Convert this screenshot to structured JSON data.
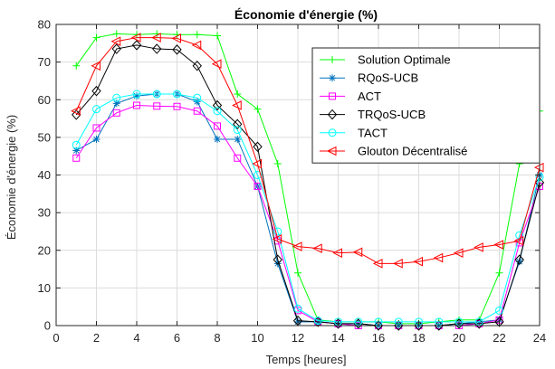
{
  "chart_data": {
    "type": "line",
    "title": "Économie d'énergie (%)",
    "xlabel": "Temps [heures]",
    "ylabel": "Économie d'énergie (%)",
    "xlim": [
      0,
      24
    ],
    "ylim": [
      0,
      80
    ],
    "xticks": [
      0,
      2,
      4,
      6,
      8,
      10,
      12,
      14,
      16,
      18,
      20,
      22,
      24
    ],
    "yticks": [
      0,
      10,
      20,
      30,
      40,
      50,
      60,
      70,
      80
    ],
    "grid": true,
    "legend_position": "top-right",
    "x": [
      1,
      2,
      3,
      4,
      5,
      6,
      7,
      8,
      9,
      10,
      11,
      12,
      13,
      14,
      15,
      16,
      17,
      18,
      19,
      20,
      21,
      22,
      23,
      24
    ],
    "series": [
      {
        "name": "Solution Optimale",
        "color": "#00ff00",
        "marker": "plus",
        "values": [
          69,
          76.5,
          77.5,
          77.3,
          77.5,
          77.3,
          77.3,
          77,
          61.5,
          57.5,
          43,
          14,
          1.5,
          1,
          1,
          1,
          0.5,
          0.5,
          1,
          1.5,
          1.5,
          14,
          43,
          57
        ]
      },
      {
        "name": "RQoS-UCB",
        "color": "#0072bd",
        "marker": "asterisk",
        "values": [
          46.5,
          49.5,
          59,
          61,
          61.5,
          61.5,
          59.5,
          49.5,
          49.5,
          37,
          16.5,
          1,
          1,
          0.5,
          0.5,
          0,
          0,
          0,
          0,
          0.5,
          1,
          1.5,
          17,
          40
        ]
      },
      {
        "name": "ACT",
        "color": "#ff00ff",
        "marker": "square",
        "values": [
          44.5,
          52.5,
          56.5,
          58.5,
          58.3,
          58.2,
          57,
          53,
          44.5,
          37,
          22.5,
          4,
          1,
          0.5,
          0,
          0,
          0,
          0,
          0,
          0,
          0.5,
          1.5,
          22,
          37
        ]
      },
      {
        "name": "TRQoS-UCB",
        "color": "#000000",
        "marker": "diamond",
        "values": [
          56,
          62.3,
          73.5,
          74.5,
          73.5,
          73.3,
          69,
          58.5,
          53.5,
          47.5,
          17.5,
          1.3,
          1,
          0.5,
          0.5,
          0,
          0,
          0,
          0,
          0.5,
          0.5,
          1,
          17.5,
          38
        ]
      },
      {
        "name": "TACT",
        "color": "#00ffff",
        "marker": "circle",
        "values": [
          48,
          57.5,
          60.5,
          61.5,
          61.5,
          61.5,
          60.5,
          57,
          52,
          40,
          25,
          4.5,
          1.3,
          1,
          1,
          1,
          1,
          1,
          1,
          1,
          1,
          4,
          24,
          39.5
        ]
      },
      {
        "name": "Glouton Décentralisé",
        "color": "#ff0000",
        "marker": "triangle-left",
        "values": [
          57,
          69,
          75.5,
          76.5,
          76.5,
          76.3,
          74.5,
          69.5,
          58.5,
          43,
          23,
          21,
          20.5,
          19.3,
          19.5,
          16.5,
          16.5,
          17,
          18,
          19.3,
          20.8,
          21.5,
          22.5,
          42
        ]
      }
    ]
  }
}
